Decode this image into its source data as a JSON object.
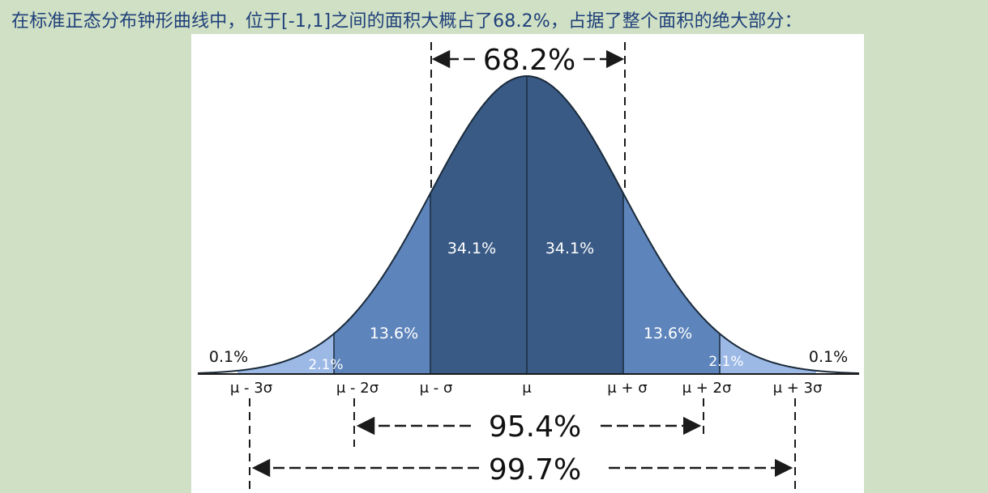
{
  "caption": "在标准正态分布钟形曲线中，位于[-1,1]之间的面积大概占了68.2%，占据了整个面积的绝大部分：",
  "diagram": {
    "region_labels": {
      "c1_left": "34.1%",
      "c1_right": "34.1%",
      "c2_left": "13.6%",
      "c2_right": "13.6%",
      "c3_left": "2.1%",
      "c3_right": "2.1%",
      "tail_left": "0.1%",
      "tail_right": "0.1%"
    },
    "axis_labels": {
      "m3": "μ - 3σ",
      "m2": "μ - 2σ",
      "m1": "μ - σ",
      "mu": "μ",
      "p1": "μ + σ",
      "p2": "μ + 2σ",
      "p3": "μ + 3σ"
    },
    "ranges": {
      "one_sigma": "68.2%",
      "two_sigma": "95.4%",
      "three_sigma": "99.7%"
    },
    "colors": {
      "center": "#3a5a86",
      "second": "#5d84bb",
      "third": "#9cb9e6",
      "outline": "#1a2a3a"
    }
  }
}
